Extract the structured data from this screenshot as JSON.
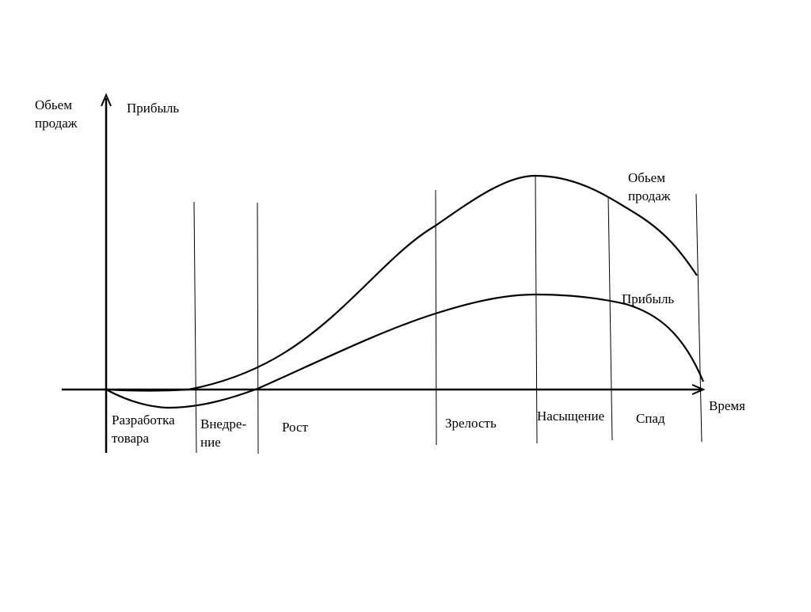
{
  "axes": {
    "y_label_line1": "Обьем",
    "y_label_line2": "продаж",
    "y_label_profit": "Прибыль",
    "x_label": "Время"
  },
  "curves": {
    "sales_label_line1": "Обьем",
    "sales_label_line2": "продаж",
    "profit_label": "Прибыль"
  },
  "stages": {
    "development_line1": "Разработка",
    "development_line2": "товара",
    "introduction_line1": "Внедре-",
    "introduction_line2": "ние",
    "growth": "Рост",
    "maturity": "Зрелость",
    "saturation": "Насыщение",
    "decline": "Спад"
  },
  "colors": {
    "ink": "#000000",
    "background": "#ffffff"
  }
}
